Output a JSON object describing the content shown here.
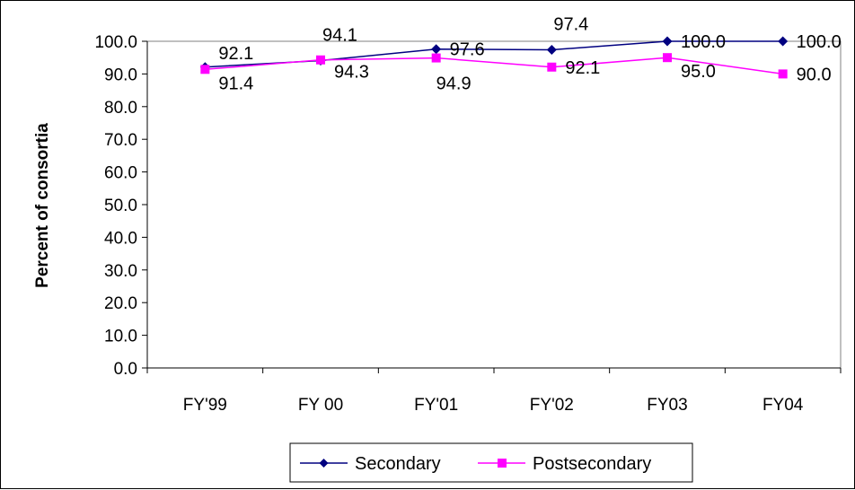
{
  "chart_data": {
    "type": "line",
    "title": "",
    "xlabel": "",
    "ylabel": "Percent of consortia",
    "categories": [
      "FY'99",
      "FY 00",
      "FY'01",
      "FY'02",
      "FY03",
      "FY04"
    ],
    "series": [
      {
        "name": "Secondary",
        "color": "#000080",
        "marker": "diamond",
        "values": [
          92.1,
          94.1,
          97.6,
          97.4,
          100.0,
          100.0
        ],
        "labels": [
          "92.1",
          "94.1",
          "97.6",
          "97.4",
          "100.0",
          "100.0"
        ]
      },
      {
        "name": "Postsecondary",
        "color": "#FF00FF",
        "marker": "square",
        "values": [
          91.4,
          94.3,
          94.9,
          92.1,
          95.0,
          90.0
        ],
        "labels": [
          "91.4",
          "94.3",
          "94.9",
          "92.1",
          "95.0",
          "90.0"
        ]
      }
    ],
    "yticks": [
      "0.0",
      "10.0",
      "20.0",
      "30.0",
      "40.0",
      "50.0",
      "60.0",
      "70.0",
      "80.0",
      "90.0",
      "100.0"
    ],
    "ylim": [
      0,
      100
    ],
    "grid": false,
    "legend": "bottom"
  }
}
